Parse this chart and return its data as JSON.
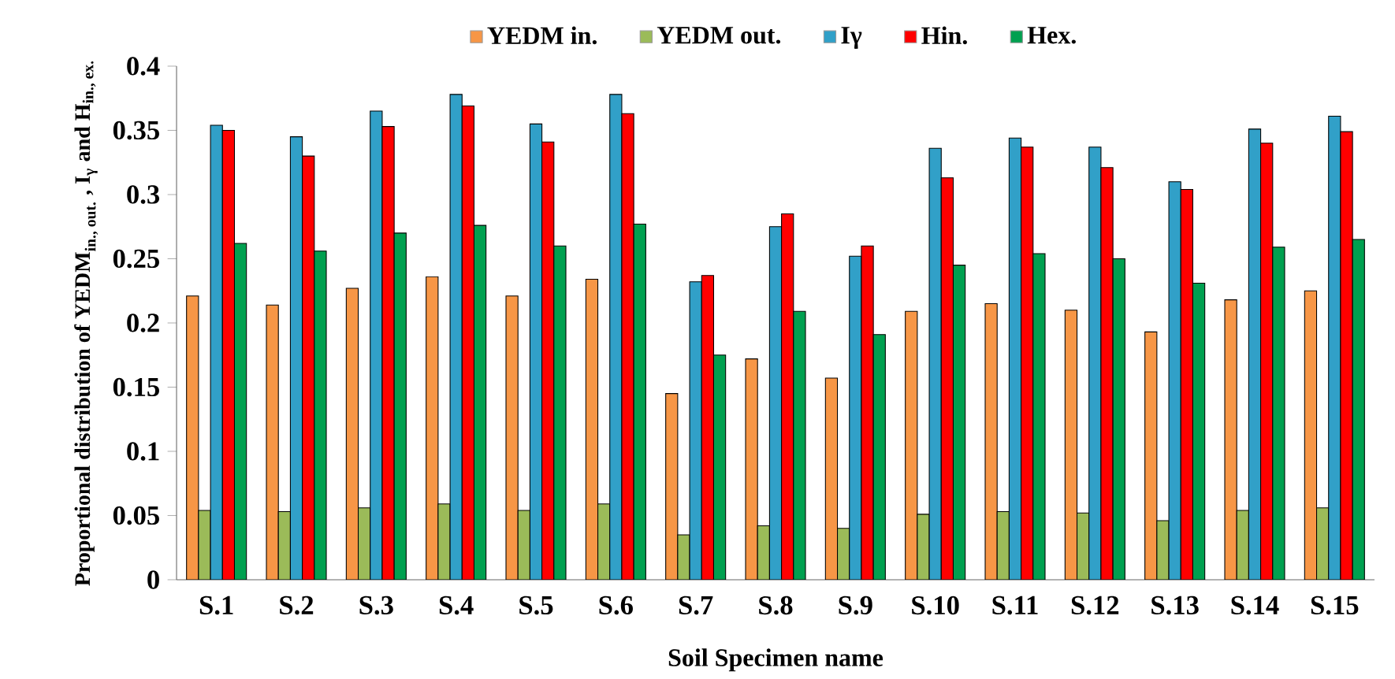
{
  "chart_data": {
    "type": "bar",
    "xlabel": "Soil Specimen name",
    "ylabel": "\\text{Proportional distribution of YEDM}_{\\text{in., out.}}\\text{ , I}_{\\text{γ}}\\text{ and H}_{\\text{in., ex.}}",
    "categories": [
      "S.1",
      "S.2",
      "S.3",
      "S.4",
      "S.5",
      "S.6",
      "S.7",
      "S.8",
      "S.9",
      "S.10",
      "S.11",
      "S.12",
      "S.13",
      "S.14",
      "S.15"
    ],
    "series": [
      {
        "name": "YEDM in.",
        "color": "#f79646",
        "values": [
          0.221,
          0.214,
          0.227,
          0.236,
          0.221,
          0.234,
          0.145,
          0.172,
          0.157,
          0.209,
          0.215,
          0.21,
          0.193,
          0.218,
          0.225
        ]
      },
      {
        "name": "YEDM out.",
        "color": "#9bbb59",
        "values": [
          0.054,
          0.053,
          0.056,
          0.059,
          0.054,
          0.059,
          0.035,
          0.042,
          0.04,
          0.051,
          0.053,
          0.052,
          0.046,
          0.054,
          0.056
        ]
      },
      {
        "name": "Iγ",
        "color": "#31a0c8",
        "values": [
          0.354,
          0.345,
          0.365,
          0.378,
          0.355,
          0.378,
          0.232,
          0.275,
          0.252,
          0.336,
          0.344,
          0.337,
          0.31,
          0.351,
          0.361
        ]
      },
      {
        "name": "Hin.",
        "color": "#ff0000",
        "values": [
          0.35,
          0.33,
          0.353,
          0.369,
          0.341,
          0.363,
          0.237,
          0.285,
          0.26,
          0.313,
          0.337,
          0.321,
          0.304,
          0.34,
          0.349
        ]
      },
      {
        "name": "Hex.",
        "color": "#00a050",
        "values": [
          0.262,
          0.256,
          0.27,
          0.276,
          0.26,
          0.277,
          0.175,
          0.209,
          0.191,
          0.245,
          0.254,
          0.25,
          0.231,
          0.259,
          0.265
        ]
      }
    ],
    "ylim": [
      0,
      0.4
    ],
    "yticks": [
      0,
      0.05,
      0.1,
      0.15,
      0.2,
      0.25,
      0.3,
      0.35,
      0.4
    ],
    "grid": false,
    "legend": "top"
  }
}
